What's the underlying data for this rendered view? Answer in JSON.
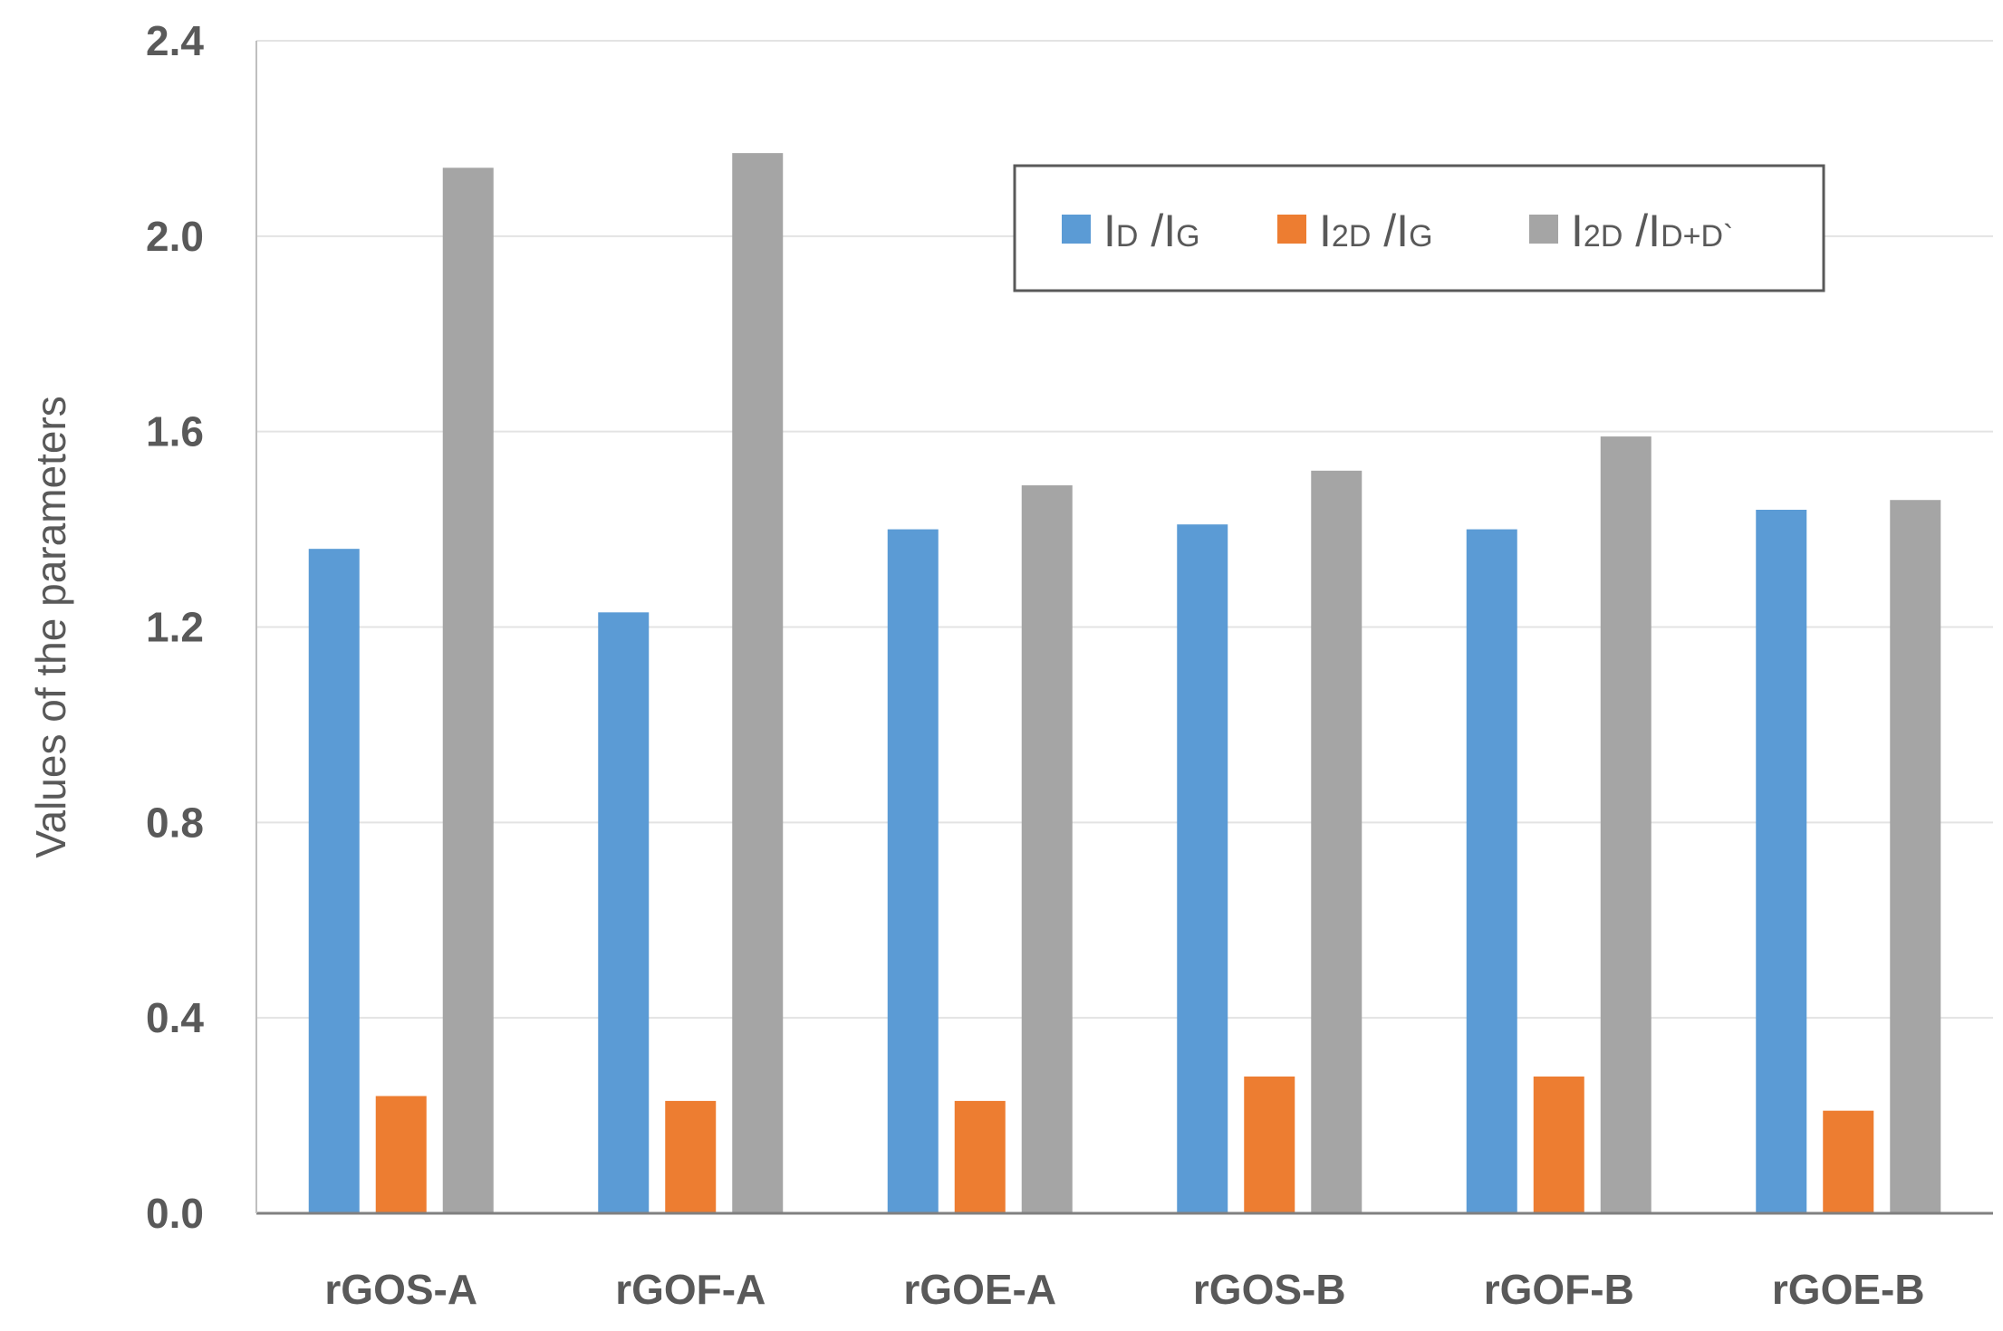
{
  "chart_data": {
    "type": "bar",
    "title": "",
    "xlabel": "",
    "ylabel": "Values of the parameters",
    "ylim": [
      0,
      2.4
    ],
    "yticks": [
      "0.0",
      "0.4",
      "0.8",
      "1.2",
      "1.6",
      "2.0",
      "2.4"
    ],
    "grid": true,
    "legend_position": "top-right",
    "categories": [
      "rGOS-A",
      "rGOF-A",
      "rGOE-A",
      "rGOS-B",
      "rGOF-B",
      "rGOE-B"
    ],
    "series": [
      {
        "name": "ID /IG",
        "main1": "I",
        "sub1": "D",
        "sep": " /",
        "main2": "I",
        "sub2": "G",
        "color": "#5b9bd5",
        "values": [
          1.36,
          1.23,
          1.4,
          1.41,
          1.4,
          1.44
        ]
      },
      {
        "name": "I2D /IG",
        "main1": "I",
        "sub1": "2D",
        "sep": " /",
        "main2": "I",
        "sub2": "G",
        "color": "#ed7d31",
        "values": [
          0.24,
          0.23,
          0.23,
          0.28,
          0.28,
          0.21
        ]
      },
      {
        "name": "I2D /ID+D`",
        "main1": "I",
        "sub1": "2D",
        "sep": " /",
        "main2": "I",
        "sub2": "D+D`",
        "color": "#a5a5a5",
        "values": [
          2.14,
          2.17,
          1.49,
          1.52,
          1.59,
          1.46
        ]
      }
    ]
  }
}
